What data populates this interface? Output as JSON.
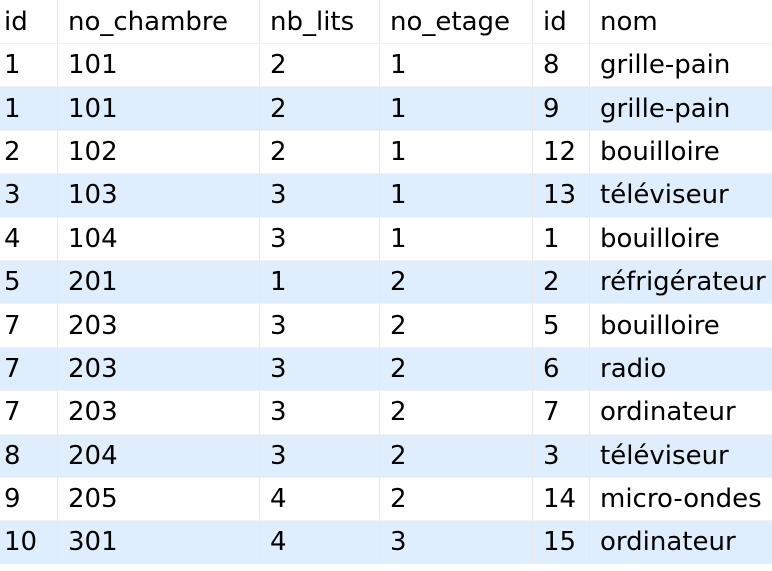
{
  "result_grid": {
    "columns": [
      "id",
      "no_chambre",
      "nb_lits",
      "no_etage",
      "id",
      "nom"
    ],
    "rows": [
      [
        "1",
        "101",
        "2",
        "1",
        "8",
        "grille-pain"
      ],
      [
        "1",
        "101",
        "2",
        "1",
        "9",
        "grille-pain"
      ],
      [
        "2",
        "102",
        "2",
        "1",
        "12",
        "bouilloire"
      ],
      [
        "3",
        "103",
        "3",
        "1",
        "13",
        "téléviseur"
      ],
      [
        "4",
        "104",
        "3",
        "1",
        "1",
        "bouilloire"
      ],
      [
        "5",
        "201",
        "1",
        "2",
        "2",
        "réfrigérateur"
      ],
      [
        "7",
        "203",
        "3",
        "2",
        "5",
        "bouilloire"
      ],
      [
        "7",
        "203",
        "3",
        "2",
        "6",
        "radio"
      ],
      [
        "7",
        "203",
        "3",
        "2",
        "7",
        "ordinateur"
      ],
      [
        "8",
        "204",
        "3",
        "2",
        "3",
        "téléviseur"
      ],
      [
        "9",
        "205",
        "4",
        "2",
        "14",
        "micro-ondes"
      ],
      [
        "10",
        "301",
        "4",
        "3",
        "15",
        "ordinateur"
      ]
    ]
  },
  "colors": {
    "header_bg": "#ffffff",
    "row_alt_bg": "#dfeefc",
    "text": "#000000"
  }
}
